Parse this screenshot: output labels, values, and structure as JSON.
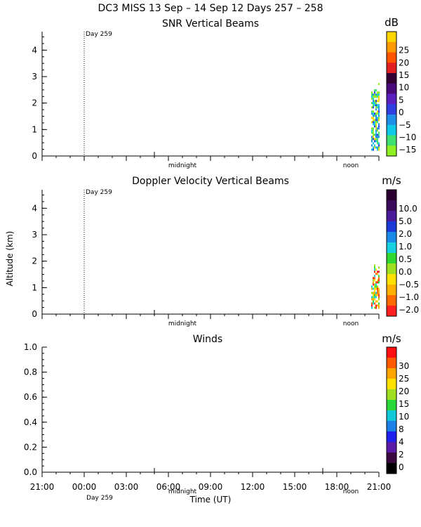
{
  "figure": {
    "title": "DC3 MISS  13 Sep – 14 Sep 12 Days 257 – 258",
    "xlabel": "Time (UT)",
    "ylabel": "Altitude (km)",
    "x_ticks": [
      "21:00",
      "00:00",
      "03:00",
      "06:00",
      "09:00",
      "12:00",
      "15:00",
      "18:00",
      "21:00"
    ],
    "day_marker": "Day 259",
    "midnight_label": "midnight",
    "noon_label": "noon"
  },
  "chart_data": [
    {
      "type": "heatmap",
      "title": "SNR Vertical Beams",
      "ylim": [
        0,
        4.7
      ],
      "y_ticks": [
        "0",
        "1",
        "2",
        "3",
        "4"
      ],
      "day_marker": "Day 259",
      "data_note_x_range_hours": [
        22.8,
        23.0
      ],
      "data_altitude_range_km": [
        0.2,
        2.9
      ],
      "colorbar": {
        "unit": "dB",
        "labels": [
          "25",
          "20",
          "15",
          "10",
          "5",
          "0",
          "−5",
          "−10",
          "−15"
        ],
        "colors": [
          "#ffd500",
          "#ff9900",
          "#ff5500",
          "#e02020",
          "#330033",
          "#4a0a7a",
          "#5a1fbf",
          "#2f3fe0",
          "#1f8fe8",
          "#10c8e8",
          "#40e070",
          "#8ef020"
        ]
      }
    },
    {
      "type": "heatmap",
      "title": "Doppler Velocity Vertical Beams",
      "ylim": [
        0,
        4.7
      ],
      "y_ticks": [
        "0",
        "1",
        "2",
        "3",
        "4"
      ],
      "day_marker": "Day 259",
      "data_altitude_range_km": [
        0.2,
        1.9
      ],
      "colorbar": {
        "unit": "m/s",
        "labels": [
          "10.0",
          "5.0",
          "2.0",
          "1.0",
          "0.5",
          "0.0",
          "−0.5",
          "−1.0",
          "−2.0"
        ],
        "colors": [
          "#2a0030",
          "#3a0a5a",
          "#4a1a9a",
          "#1a3ad8",
          "#1a8ae8",
          "#18d0e0",
          "#30d830",
          "#a0e020",
          "#ffe000",
          "#ffb000",
          "#ff6a00",
          "#ff2020"
        ]
      }
    },
    {
      "type": "line",
      "title": "Winds",
      "ylim": [
        0,
        1
      ],
      "y_ticks": [
        "0.0",
        "0.2",
        "0.4",
        "0.6",
        "0.8",
        "1.0"
      ],
      "series": [],
      "colorbar": {
        "unit": "m/s",
        "labels": [
          "30",
          "25",
          "20",
          "15",
          "10",
          "8",
          "4",
          "2",
          "0"
        ],
        "colors": [
          "#ff1010",
          "#ff5a00",
          "#ffa500",
          "#ffe100",
          "#a0e020",
          "#2ad83a",
          "#10c8d8",
          "#1a80e8",
          "#2020ee",
          "#5a1aa8",
          "#3a0a40",
          "#000000"
        ]
      }
    }
  ]
}
